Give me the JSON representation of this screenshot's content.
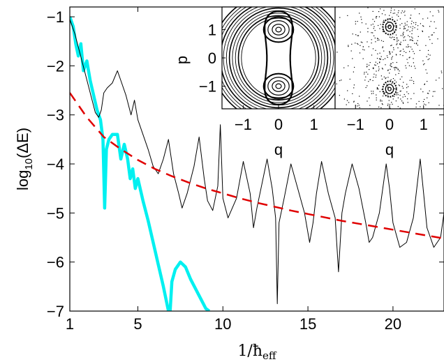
{
  "chart_data": [
    {
      "type": "line",
      "title": "",
      "xlabel": "1/ħ",
      "xlabel_sub": "eff",
      "ylabel": "log",
      "ylabel_sub": "10",
      "ylabel_tail": "(ΔE)",
      "xlim": [
        1,
        23
      ],
      "ylim": [
        -7,
        -0.8
      ],
      "xticks": [
        1,
        5,
        10,
        15,
        20
      ],
      "yticks": [
        -7,
        -6,
        -5,
        -4,
        -3,
        -2,
        -1
      ],
      "ytick_labels": [
        "−7",
        "−6",
        "−5",
        "−4",
        "−3",
        "−2",
        "−1"
      ],
      "grid": false,
      "series": [
        {
          "color": "#000000",
          "style": "solid-thin",
          "x": [
            1.0,
            1.3,
            1.6,
            1.9,
            2.2,
            2.5,
            2.7,
            2.85,
            3.0,
            3.2,
            3.5,
            3.8,
            4.0,
            4.3,
            4.6,
            4.8,
            5.0,
            5.3,
            5.6,
            5.9,
            6.2,
            6.5,
            6.8,
            7.1,
            7.4,
            7.6,
            7.9,
            8.3,
            8.6,
            8.9,
            9.1,
            9.4,
            9.7,
            9.85,
            10.0,
            10.3,
            10.8,
            11.2,
            11.6,
            11.8,
            12.0,
            12.3,
            12.6,
            12.9,
            13.1,
            13.2,
            13.3,
            13.6,
            14.0,
            14.4,
            14.8,
            15.1,
            15.3,
            15.5,
            15.8,
            16.2,
            16.6,
            16.8,
            17.0,
            17.2,
            17.6,
            18.0,
            18.4,
            18.6,
            18.8,
            19.2,
            19.6,
            19.8,
            20.0,
            20.4,
            20.8,
            21.2,
            21.6,
            21.8,
            22.0,
            22.4,
            22.8,
            23.0
          ],
          "y": [
            -1.05,
            -1.35,
            -1.75,
            -2.15,
            -2.55,
            -2.95,
            -3.05,
            -2.9,
            -2.55,
            -2.45,
            -2.35,
            -2.1,
            -2.3,
            -2.6,
            -3.0,
            -2.7,
            -3.1,
            -3.4,
            -3.7,
            -4.05,
            -4.2,
            -3.9,
            -3.5,
            -4.2,
            -4.6,
            -4.9,
            -4.6,
            -4.05,
            -3.45,
            -4.3,
            -4.75,
            -4.95,
            -4.45,
            -3.2,
            -4.7,
            -5.1,
            -4.7,
            -3.95,
            -4.6,
            -5.3,
            -4.9,
            -4.4,
            -3.9,
            -4.5,
            -5.1,
            -6.85,
            -5.2,
            -4.7,
            -4.0,
            -4.5,
            -5.0,
            -5.6,
            -5.2,
            -4.6,
            -3.95,
            -4.6,
            -5.1,
            -6.2,
            -5.0,
            -4.6,
            -4.0,
            -4.5,
            -5.2,
            -5.6,
            -5.5,
            -5.0,
            -4.0,
            -4.5,
            -5.2,
            -5.7,
            -5.6,
            -5.1,
            -3.9,
            -4.6,
            -5.3,
            -5.7,
            -5.5,
            -5.0
          ]
        },
        {
          "color": "#00f0f0",
          "style": "solid-thick",
          "x": [
            1.0,
            1.2,
            1.35,
            1.5,
            1.65,
            1.8,
            2.0,
            2.2,
            2.4,
            2.6,
            2.8,
            2.95,
            3.05,
            3.15,
            3.3,
            3.5,
            3.8,
            4.0,
            4.2,
            4.4,
            4.55,
            4.7,
            4.85,
            5.0,
            5.3,
            5.6,
            5.9,
            6.2,
            6.5,
            6.8,
            6.9,
            7.0,
            7.2,
            7.5,
            7.8,
            8.1,
            8.4,
            8.7,
            9.0,
            9.2
          ],
          "y": [
            -1.0,
            -1.2,
            -1.55,
            -1.8,
            -1.55,
            -2.1,
            -1.9,
            -2.3,
            -2.6,
            -2.9,
            -3.1,
            -3.5,
            -4.9,
            -3.7,
            -3.5,
            -3.4,
            -3.4,
            -3.9,
            -3.6,
            -3.9,
            -4.3,
            -4.1,
            -4.5,
            -4.3,
            -4.75,
            -5.15,
            -5.6,
            -6.05,
            -6.5,
            -7.0,
            -7.0,
            -6.4,
            -6.15,
            -6.0,
            -6.1,
            -6.35,
            -6.55,
            -6.75,
            -6.95,
            -7.0
          ]
        },
        {
          "color": "#e00000",
          "style": "dashed",
          "x": [
            1,
            2,
            3,
            4,
            5,
            6,
            7,
            8,
            9,
            10,
            11,
            12,
            13,
            14,
            15,
            16,
            17,
            18,
            19,
            20,
            21,
            22,
            23
          ],
          "y": [
            -2.55,
            -3.05,
            -3.45,
            -3.7,
            -3.92,
            -4.1,
            -4.25,
            -4.38,
            -4.5,
            -4.6,
            -4.7,
            -4.79,
            -4.87,
            -4.95,
            -5.02,
            -5.09,
            -5.16,
            -5.22,
            -5.28,
            -5.34,
            -5.4,
            -5.46,
            -5.52
          ]
        }
      ]
    },
    {
      "type": "scatter",
      "title": "",
      "xlabel": "q",
      "ylabel": "p",
      "xlim": [
        -1.6,
        1.6
      ],
      "ylim": [
        -1.8,
        1.8
      ],
      "xticks": [
        -1,
        0,
        1
      ],
      "xtick_labels": [
        "−1",
        "0",
        "1"
      ],
      "yticks": [
        -1,
        0,
        1
      ],
      "ytick_labels": [
        "−1",
        "0",
        "1"
      ],
      "content": "regular invariant curves: two island chains centred at p = 1 and p = −1, surrounded by nested closed orbits"
    },
    {
      "type": "scatter",
      "title": "",
      "xlabel": "q",
      "xlim": [
        -1.6,
        1.6
      ],
      "ylim": [
        -1.8,
        1.8
      ],
      "xticks": [
        -1,
        0,
        1
      ],
      "xtick_labels": [
        "−1",
        "0",
        "1"
      ],
      "content": "chaotic sea of scattered points with two small stable islands at (0, 1.1) and (0, −1.1)"
    }
  ]
}
